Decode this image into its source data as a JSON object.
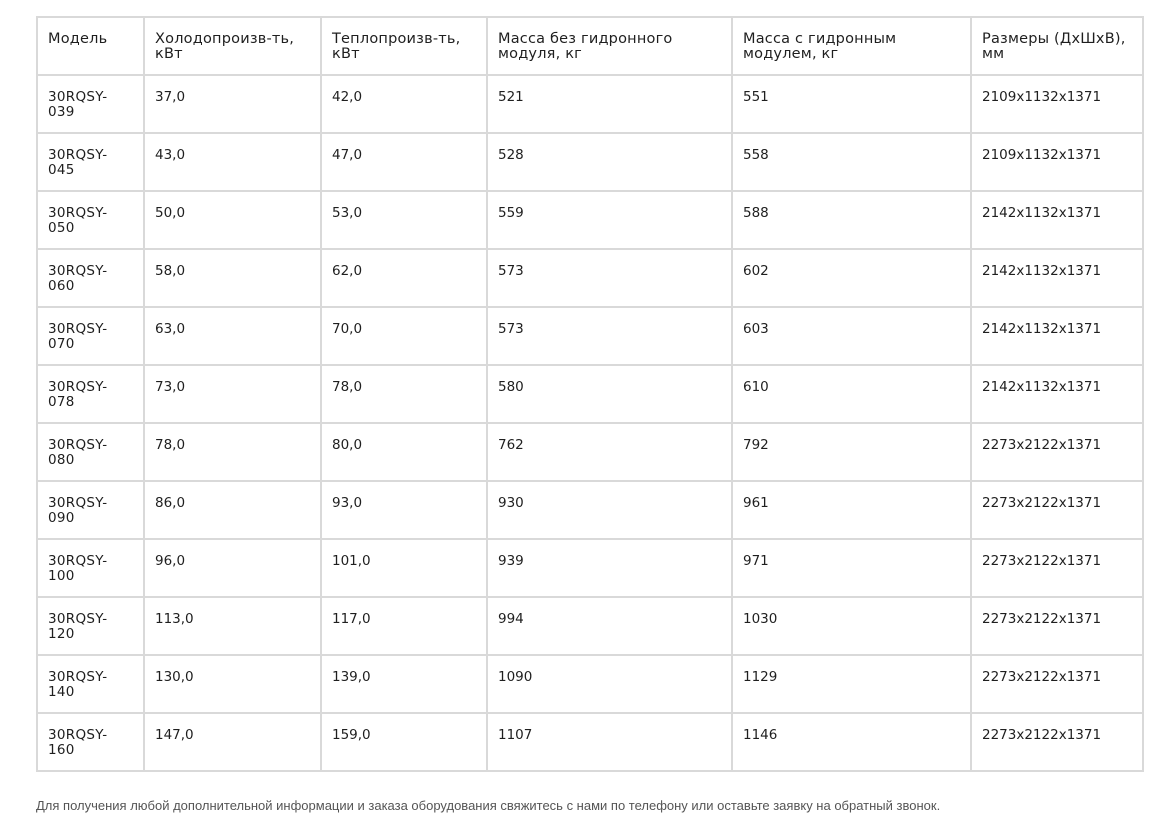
{
  "table": {
    "headers": [
      "Модель",
      "Холодопроизв-ть, кВт",
      "Теплопроизв-ть, кВт",
      "Масса без гидронного модуля, кг",
      "Масса с гидронным модулем, кг",
      "Размеры (ДхШхВ), мм"
    ],
    "rows": [
      [
        "30RQSY-039",
        "37,0",
        "42,0",
        "521",
        "551",
        "2109x1132x1371"
      ],
      [
        "30RQSY-045",
        "43,0",
        "47,0",
        "528",
        "558",
        "2109x1132x1371"
      ],
      [
        "30RQSY-050",
        "50,0",
        "53,0",
        "559",
        "588",
        "2142x1132x1371"
      ],
      [
        "30RQSY-060",
        "58,0",
        "62,0",
        "573",
        "602",
        "2142x1132x1371"
      ],
      [
        "30RQSY-070",
        "63,0",
        "70,0",
        "573",
        "603",
        "2142x1132x1371"
      ],
      [
        "30RQSY-078",
        "73,0",
        "78,0",
        "580",
        "610",
        "2142x1132x1371"
      ],
      [
        "30RQSY-080",
        "78,0",
        "80,0",
        "762",
        "792",
        "2273x2122x1371"
      ],
      [
        "30RQSY-090",
        "86,0",
        "93,0",
        "930",
        "961",
        "2273x2122x1371"
      ],
      [
        "30RQSY-100",
        "96,0",
        "101,0",
        "939",
        "971",
        "2273x2122x1371"
      ],
      [
        "30RQSY-120",
        "113,0",
        "117,0",
        "994",
        "1030",
        "2273x2122x1371"
      ],
      [
        "30RQSY-140",
        "130,0",
        "139,0",
        "1090",
        "1129",
        "2273x2122x1371"
      ],
      [
        "30RQSY-160",
        "147,0",
        "159,0",
        "1107",
        "1146",
        "2273x2122x1371"
      ]
    ]
  },
  "footnote": "Для получения любой дополнительной информации и заказа оборудования свяжитесь с нами по телефону или оставьте заявку на обратный звонок.",
  "colors": {
    "border": "#d9d9d9",
    "text": "#1f1f1f",
    "footnote_text": "#555555"
  }
}
